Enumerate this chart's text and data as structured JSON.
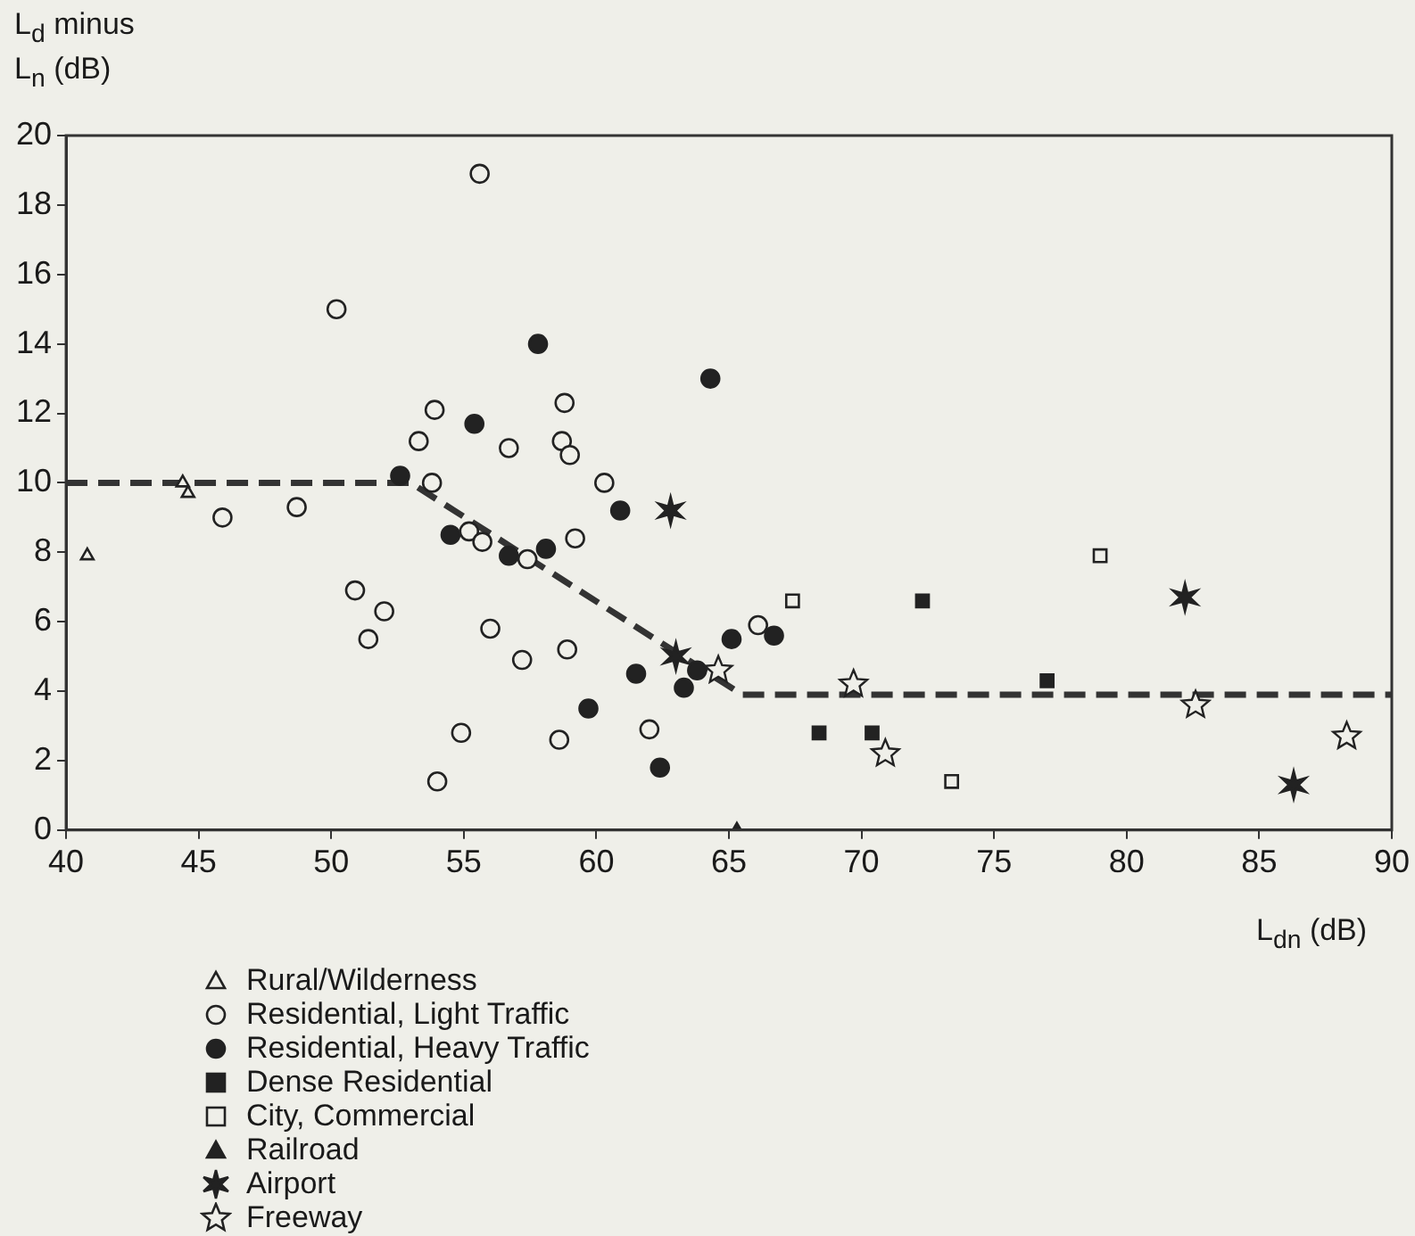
{
  "chart_data": {
    "type": "scatter",
    "ylabel": "L$_{d}$ minus L$_{n}$ (dB)",
    "xlabel": "L$_{dn}$ (dB)",
    "xlim": [
      40,
      90
    ],
    "xticks": [
      40,
      45,
      50,
      55,
      60,
      65,
      70,
      75,
      80,
      85,
      90
    ],
    "ylim": [
      0,
      20
    ],
    "yticks": [
      0,
      2,
      4,
      6,
      8,
      10,
      12,
      14,
      16,
      18,
      20
    ],
    "grid": false,
    "legend": "bottom left",
    "series": [
      {
        "name": "Rural/Wilderness",
        "color": "#efefe9",
        "marker": "triangle",
        "x": [
          40.8,
          44.4,
          44.6
        ],
        "values": [
          7.9,
          10.0,
          9.7
        ]
      },
      {
        "name": "Residential, Light Traffic",
        "color": "#efefe9",
        "marker": "circle",
        "x": [
          45.9,
          48.7,
          50.2,
          50.9,
          51.4,
          52.0,
          53.3,
          53.9,
          53.8,
          55.2,
          55.7,
          55.6,
          56.0,
          56.7,
          57.2,
          57.4,
          54.9,
          54.0,
          58.8,
          58.7,
          59.0,
          60.3,
          59.2,
          58.9,
          58.6,
          62.0,
          66.1
        ],
        "values": [
          9.0,
          9.3,
          15.0,
          6.9,
          5.5,
          6.3,
          11.2,
          12.1,
          10.0,
          8.6,
          8.3,
          18.9,
          5.8,
          11.0,
          4.9,
          7.8,
          2.8,
          1.4,
          12.3,
          11.2,
          10.8,
          10.0,
          8.4,
          5.2,
          2.6,
          2.9,
          5.9
        ]
      },
      {
        "name": "Residential, Heavy Traffic",
        "color": "#222222",
        "marker": "circle",
        "x": [
          52.6,
          54.5,
          55.4,
          56.7,
          57.8,
          64.3,
          60.9,
          58.1,
          61.5,
          59.7,
          63.3,
          63.8,
          62.4,
          65.1,
          66.7
        ],
        "values": [
          10.2,
          8.5,
          11.7,
          7.9,
          14.0,
          13.0,
          9.2,
          8.1,
          4.5,
          3.5,
          4.1,
          4.6,
          1.8,
          5.5,
          5.6
        ]
      },
      {
        "name": "Dense Residential",
        "color": "#222222",
        "marker": "square",
        "x": [
          72.3,
          68.4,
          70.4,
          77.0
        ],
        "values": [
          6.6,
          2.8,
          2.8,
          4.3
        ]
      },
      {
        "name": "City, Commercial",
        "color": "#efefe9",
        "marker": "square",
        "x": [
          67.4,
          73.4,
          79.0
        ],
        "values": [
          6.6,
          1.4,
          7.9
        ]
      },
      {
        "name": "Railroad",
        "color": "#222222",
        "marker": "triangle",
        "x": [
          65.3
        ],
        "values": [
          0
        ]
      },
      {
        "name": "Airport",
        "color": "#222222",
        "marker": "cross",
        "x": [
          62.8,
          63.0,
          82.2,
          86.3
        ],
        "values": [
          9.2,
          5.0,
          6.7,
          1.3
        ]
      },
      {
        "name": "Freeway",
        "color": "#efefe9",
        "marker": "star",
        "x": [
          64.6,
          69.7,
          70.9,
          82.6,
          88.3
        ],
        "values": [
          4.6,
          4.2,
          2.2,
          3.6,
          2.7
        ]
      },
      {
        "type": "line",
        "color": "#333333",
        "line_style": "dashed",
        "marker": "none",
        "x": [
          40,
          53,
          65.5,
          90
        ],
        "values": [
          10,
          10,
          3.9,
          3.9
        ]
      }
    ]
  }
}
